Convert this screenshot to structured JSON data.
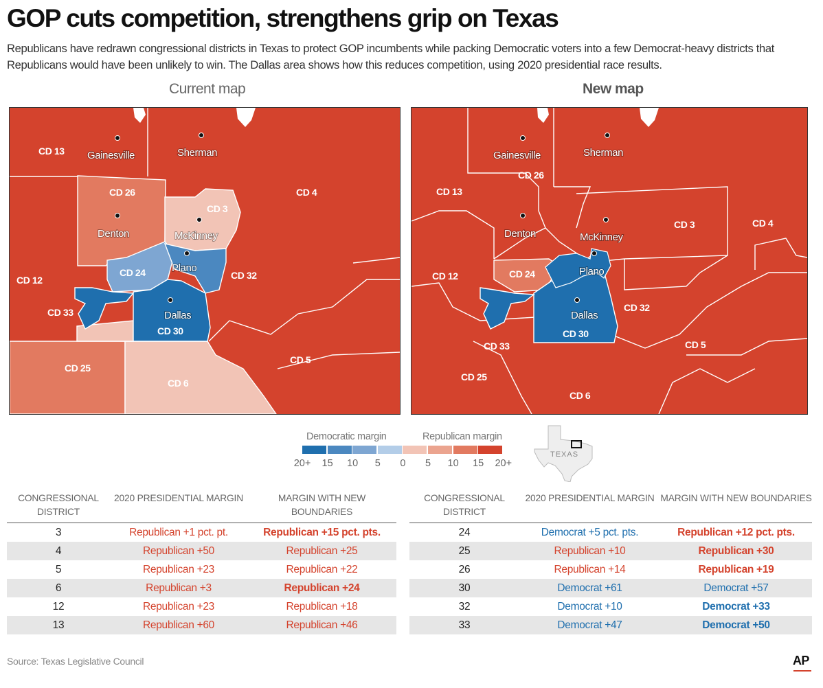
{
  "title": "GOP cuts competition, strengthens grip on Texas",
  "subtitle": "Republicans have redrawn congressional districts in Texas to protect GOP incumbents while packing Democratic voters into a few Democrat-heavy districts that Republicans would have been unlikely to win. The Dallas area shows how this reduces competition, using 2020 presidential race results.",
  "maps": {
    "current": {
      "heading": "Current map",
      "district_labels": [
        "CD 13",
        "CD 4",
        "CD 26",
        "CD 3",
        "CD 24",
        "CD 32",
        "CD 12",
        "CD 33",
        "CD 30",
        "CD 25",
        "CD 6",
        "CD 5"
      ],
      "cities": [
        "Gainesville",
        "Sherman",
        "Denton",
        "McKinney",
        "Plano",
        "Dallas"
      ]
    },
    "new": {
      "heading": "New map",
      "district_labels": [
        "CD 26",
        "CD 13",
        "CD 3",
        "CD 4",
        "CD 12",
        "CD 24",
        "CD 32",
        "CD 33",
        "CD 30",
        "CD 5",
        "CD 25",
        "CD 6"
      ],
      "cities": [
        "Gainesville",
        "Sherman",
        "Denton",
        "McKinney",
        "Plano",
        "Dallas"
      ]
    }
  },
  "legend": {
    "dem_label": "Democratic margin",
    "rep_label": "Republican margin",
    "ticks": [
      "20+",
      "15",
      "10",
      "5",
      "0",
      "5",
      "10",
      "15",
      "20+"
    ],
    "colors": [
      "#1f6fae",
      "#4b88c0",
      "#7ea6d2",
      "#b3cde8",
      "#f2c4b6",
      "#eba48f",
      "#e27a60",
      "#d4432d"
    ]
  },
  "inset_label": "TEXAS",
  "table": {
    "headers": [
      "CONGRESSIONAL DISTRICT",
      "2020 PRESIDENTIAL MARGIN",
      "MARGIN WITH NEW BOUNDARIES"
    ],
    "left_rows": [
      {
        "district": "3",
        "margin2020": "Republican +1 pct. pt.",
        "margin2020_party": "rep",
        "margin_new": "Republican +15 pct. pts.",
        "margin_new_party": "rep",
        "margin_new_bold": true
      },
      {
        "district": "4",
        "margin2020": "Republican +50",
        "margin2020_party": "rep",
        "margin_new": "Republican +25",
        "margin_new_party": "rep",
        "margin_new_bold": false
      },
      {
        "district": "5",
        "margin2020": "Republican +23",
        "margin2020_party": "rep",
        "margin_new": "Republican +22",
        "margin_new_party": "rep",
        "margin_new_bold": false
      },
      {
        "district": "6",
        "margin2020": "Republican +3",
        "margin2020_party": "rep",
        "margin_new": "Republican +24",
        "margin_new_party": "rep",
        "margin_new_bold": true
      },
      {
        "district": "12",
        "margin2020": "Republican +23",
        "margin2020_party": "rep",
        "margin_new": "Republican +18",
        "margin_new_party": "rep",
        "margin_new_bold": false
      },
      {
        "district": "13",
        "margin2020": "Republican +60",
        "margin2020_party": "rep",
        "margin_new": "Republican +46",
        "margin_new_party": "rep",
        "margin_new_bold": false
      }
    ],
    "right_rows": [
      {
        "district": "24",
        "margin2020": "Democrat +5 pct. pts.",
        "margin2020_party": "dem",
        "margin_new": "Republican +12 pct. pts.",
        "margin_new_party": "rep",
        "margin_new_bold": true
      },
      {
        "district": "25",
        "margin2020": "Republican +10",
        "margin2020_party": "rep",
        "margin_new": "Republican +30",
        "margin_new_party": "rep",
        "margin_new_bold": true
      },
      {
        "district": "26",
        "margin2020": "Republican +14",
        "margin2020_party": "rep",
        "margin_new": "Republican +19",
        "margin_new_party": "rep",
        "margin_new_bold": true
      },
      {
        "district": "30",
        "margin2020": "Democrat +61",
        "margin2020_party": "dem",
        "margin_new": "Democrat +57",
        "margin_new_party": "dem",
        "margin_new_bold": false
      },
      {
        "district": "32",
        "margin2020": "Democrat +10",
        "margin2020_party": "dem",
        "margin_new": "Democrat +33",
        "margin_new_party": "dem",
        "margin_new_bold": true
      },
      {
        "district": "33",
        "margin2020": "Democrat +47",
        "margin2020_party": "dem",
        "margin_new": "Democrat +50",
        "margin_new_party": "dem",
        "margin_new_bold": true
      }
    ]
  },
  "source": "Source: Texas Legislative Council",
  "logo": "AP"
}
